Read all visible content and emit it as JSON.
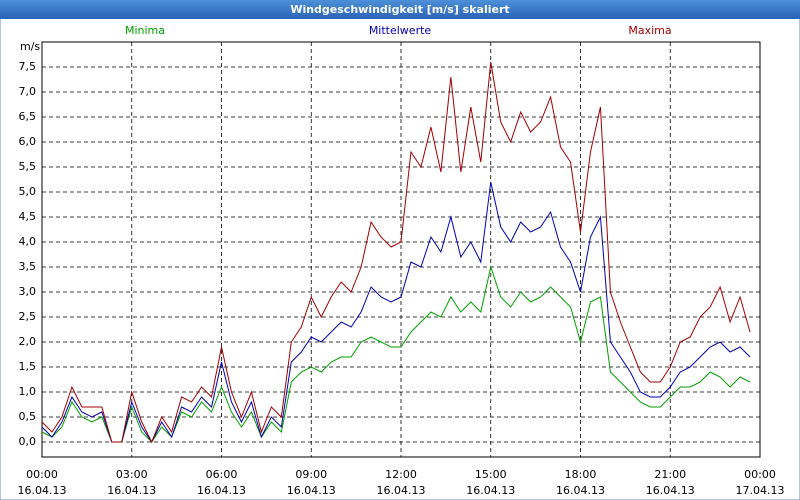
{
  "window_title": "Windgeschwindigkeit [m/s] skaliert",
  "chart_data": {
    "type": "line",
    "y_unit": "m/s",
    "x": [
      0,
      20,
      40,
      60,
      80,
      100,
      120,
      140,
      160,
      180,
      200,
      220,
      240,
      260,
      280,
      300,
      320,
      340,
      360,
      380,
      400,
      420,
      440,
      460,
      480,
      500,
      520,
      540,
      560,
      580,
      600,
      620,
      640,
      660,
      680,
      700,
      720,
      740,
      760,
      780,
      800,
      820,
      840,
      860,
      880,
      900,
      920,
      940,
      960,
      980,
      1000,
      1020,
      1040,
      1060,
      1080,
      1100,
      1120,
      1140,
      1160,
      1180,
      1200,
      1220,
      1240,
      1260,
      1280,
      1300,
      1320,
      1340,
      1360,
      1380,
      1400,
      1420
    ],
    "series": [
      {
        "name": "Minima",
        "color": "#00a000",
        "values": [
          0.2,
          0.1,
          0.3,
          0.8,
          0.5,
          0.4,
          0.5,
          0.0,
          0.0,
          0.7,
          0.2,
          0.0,
          0.3,
          0.1,
          0.6,
          0.5,
          0.8,
          0.6,
          1.1,
          0.6,
          0.3,
          0.6,
          0.1,
          0.4,
          0.2,
          1.2,
          1.4,
          1.5,
          1.4,
          1.6,
          1.7,
          1.7,
          2.0,
          2.1,
          2.0,
          1.9,
          1.9,
          2.2,
          2.4,
          2.6,
          2.5,
          2.9,
          2.6,
          2.8,
          2.6,
          3.5,
          2.9,
          2.7,
          3.0,
          2.8,
          2.9,
          3.1,
          2.9,
          2.7,
          2.0,
          2.8,
          2.9,
          1.4,
          1.2,
          1.0,
          0.8,
          0.7,
          0.7,
          0.9,
          1.1,
          1.1,
          1.2,
          1.4,
          1.3,
          1.1,
          1.3,
          1.2
        ]
      },
      {
        "name": "Mittelwerte",
        "color": "#0000b0",
        "values": [
          0.3,
          0.1,
          0.4,
          0.9,
          0.6,
          0.5,
          0.6,
          0.0,
          0.0,
          0.8,
          0.3,
          0.0,
          0.4,
          0.1,
          0.7,
          0.6,
          0.9,
          0.7,
          1.6,
          0.8,
          0.4,
          0.8,
          0.1,
          0.5,
          0.3,
          1.6,
          1.8,
          2.1,
          2.0,
          2.2,
          2.4,
          2.3,
          2.6,
          3.1,
          2.9,
          2.8,
          2.9,
          3.6,
          3.5,
          4.1,
          3.8,
          4.5,
          3.7,
          4.0,
          3.6,
          5.2,
          4.3,
          4.0,
          4.4,
          4.2,
          4.3,
          4.6,
          3.9,
          3.6,
          3.0,
          4.1,
          4.5,
          2.0,
          1.7,
          1.4,
          1.0,
          0.9,
          0.9,
          1.1,
          1.4,
          1.5,
          1.7,
          1.9,
          2.0,
          1.8,
          1.9,
          1.7
        ]
      },
      {
        "name": "Maxima",
        "color": "#a00000",
        "values": [
          0.4,
          0.2,
          0.5,
          1.1,
          0.7,
          0.7,
          0.7,
          0.0,
          0.0,
          1.0,
          0.4,
          0.0,
          0.5,
          0.2,
          0.9,
          0.8,
          1.1,
          0.9,
          1.9,
          1.0,
          0.5,
          1.0,
          0.2,
          0.7,
          0.5,
          2.0,
          2.3,
          2.9,
          2.5,
          2.9,
          3.2,
          3.0,
          3.5,
          4.4,
          4.1,
          3.9,
          4.0,
          5.8,
          5.5,
          6.3,
          5.4,
          7.3,
          5.4,
          6.7,
          5.6,
          7.6,
          6.4,
          6.0,
          6.6,
          6.2,
          6.4,
          6.9,
          5.9,
          5.6,
          4.2,
          5.8,
          6.7,
          3.0,
          2.4,
          1.9,
          1.4,
          1.2,
          1.2,
          1.5,
          2.0,
          2.1,
          2.5,
          2.7,
          3.1,
          2.4,
          2.9,
          2.2
        ]
      }
    ],
    "xlim": [
      0,
      1440
    ],
    "xticks": [
      {
        "value": 0,
        "label": "00:00"
      },
      {
        "value": 180,
        "label": "03:00"
      },
      {
        "value": 360,
        "label": "06:00"
      },
      {
        "value": 540,
        "label": "09:00"
      },
      {
        "value": 720,
        "label": "12:00"
      },
      {
        "value": 900,
        "label": "15:00"
      },
      {
        "value": 1080,
        "label": "18:00"
      },
      {
        "value": 1260,
        "label": "21:00"
      },
      {
        "value": 1440,
        "label": "00:00"
      }
    ],
    "xtick_dates": [
      "16.04.13",
      "16.04.13",
      "16.04.13",
      "16.04.13",
      "16.04.13",
      "16.04.13",
      "16.04.13",
      "16.04.13",
      "17.04.13"
    ],
    "ylim": [
      -0.3,
      8.0
    ],
    "yticks": [
      {
        "value": 0,
        "label": "0,0"
      },
      {
        "value": 0.5,
        "label": "0,5"
      },
      {
        "value": 1,
        "label": "1,0"
      },
      {
        "value": 1.5,
        "label": "1,5"
      },
      {
        "value": 2,
        "label": "2,0"
      },
      {
        "value": 2.5,
        "label": "2,5"
      },
      {
        "value": 3,
        "label": "3,0"
      },
      {
        "value": 3.5,
        "label": "3,5"
      },
      {
        "value": 4,
        "label": "4,0"
      },
      {
        "value": 4.5,
        "label": "4,5"
      },
      {
        "value": 5,
        "label": "5,0"
      },
      {
        "value": 5.5,
        "label": "5,5"
      },
      {
        "value": 6,
        "label": "6,0"
      },
      {
        "value": 6.5,
        "label": "6,5"
      },
      {
        "value": 7,
        "label": "7,0"
      },
      {
        "value": 7.5,
        "label": "7,5"
      }
    ],
    "grid": true
  }
}
